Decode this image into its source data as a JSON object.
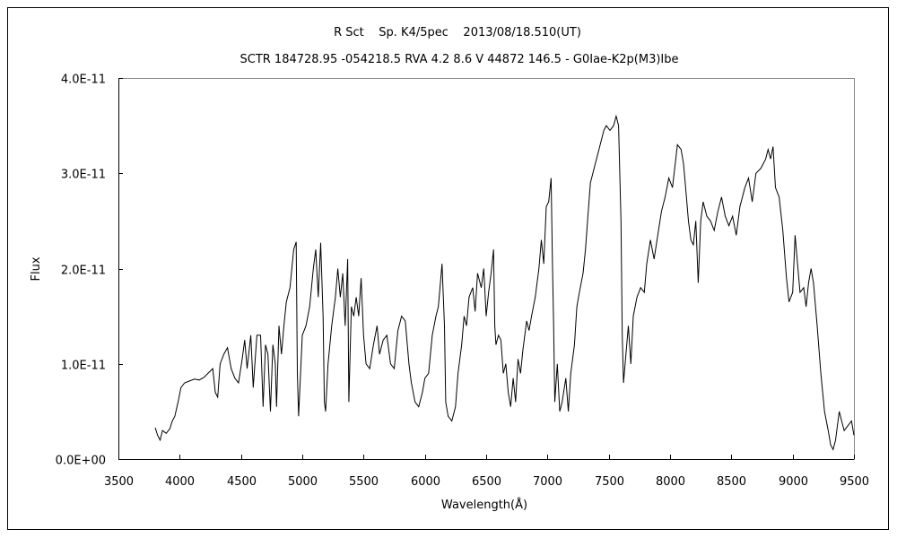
{
  "chart_data": {
    "type": "line",
    "title": "R Sct    Sp. K4/5pec    2013/08/18.510(UT)",
    "subtitle": "SCTR 184728.95 -054218.5 RVA 4.2 8.6 V 44872 146.5 - G0Iae-K2p(M3)Ibe",
    "xlabel": "Wavelength(Å)",
    "ylabel": "Flux",
    "xlim": [
      3500,
      9500
    ],
    "ylim": [
      0,
      4e-11
    ],
    "x_ticks": [
      3500,
      4000,
      4500,
      5000,
      5500,
      6000,
      6500,
      7000,
      7500,
      8000,
      8500,
      9000,
      9500
    ],
    "x_tick_labels": [
      "3500",
      "4000",
      "4500",
      "5000",
      "5500",
      "6000",
      "6500",
      "7000",
      "7500",
      "8000",
      "8500",
      "9000",
      "9500"
    ],
    "y_ticks": [
      0,
      1e-11,
      2e-11,
      3e-11,
      4e-11
    ],
    "y_tick_labels": [
      "0.0E+00",
      "1.0E-11",
      "2.0E-11",
      "3.0E-11",
      "4.0E-11"
    ],
    "grid": false,
    "line_color": "#000000",
    "series": [
      {
        "points": [
          [
            3800,
            3.3e-12
          ],
          [
            3820,
            2.5e-12
          ],
          [
            3840,
            2e-12
          ],
          [
            3860,
            3e-12
          ],
          [
            3890,
            2.7e-12
          ],
          [
            3920,
            3.2e-12
          ],
          [
            3940,
            4e-12
          ],
          [
            3960,
            4.5e-12
          ],
          [
            3990,
            6.2e-12
          ],
          [
            4010,
            7.5e-12
          ],
          [
            4040,
            8e-12
          ],
          [
            4080,
            8.2e-12
          ],
          [
            4120,
            8.4e-12
          ],
          [
            4160,
            8.3e-12
          ],
          [
            4200,
            8.6e-12
          ],
          [
            4230,
            9e-12
          ],
          [
            4270,
            9.5e-12
          ],
          [
            4290,
            7e-12
          ],
          [
            4310,
            6.5e-12
          ],
          [
            4330,
            1e-11
          ],
          [
            4360,
            1.1e-11
          ],
          [
            4390,
            1.17e-11
          ],
          [
            4420,
            9.5e-12
          ],
          [
            4450,
            8.5e-12
          ],
          [
            4480,
            8e-12
          ],
          [
            4510,
            1.05e-11
          ],
          [
            4530,
            1.25e-11
          ],
          [
            4550,
            9.5e-12
          ],
          [
            4580,
            1.3e-11
          ],
          [
            4600,
            7.5e-12
          ],
          [
            4630,
            1.3e-11
          ],
          [
            4660,
            1.3e-11
          ],
          [
            4680,
            5.5e-12
          ],
          [
            4700,
            1.2e-11
          ],
          [
            4720,
            1.1e-11
          ],
          [
            4740,
            5e-12
          ],
          [
            4760,
            1.2e-11
          ],
          [
            4780,
            1e-11
          ],
          [
            4790,
            5.5e-12
          ],
          [
            4810,
            1.4e-11
          ],
          [
            4830,
            1.1e-11
          ],
          [
            4850,
            1.4e-11
          ],
          [
            4870,
            1.65e-11
          ],
          [
            4900,
            1.8e-11
          ],
          [
            4930,
            2.2e-11
          ],
          [
            4950,
            2.28e-11
          ],
          [
            4960,
            9e-12
          ],
          [
            4970,
            4.5e-12
          ],
          [
            5000,
            1.3e-11
          ],
          [
            5030,
            1.4e-11
          ],
          [
            5060,
            1.6e-11
          ],
          [
            5090,
            2e-11
          ],
          [
            5110,
            2.2e-11
          ],
          [
            5130,
            1.7e-11
          ],
          [
            5150,
            2.27e-11
          ],
          [
            5170,
            1.5e-11
          ],
          [
            5180,
            6e-12
          ],
          [
            5190,
            5e-12
          ],
          [
            5210,
            1e-11
          ],
          [
            5240,
            1.4e-11
          ],
          [
            5270,
            1.7e-11
          ],
          [
            5290,
            2e-11
          ],
          [
            5310,
            1.7e-11
          ],
          [
            5330,
            1.95e-11
          ],
          [
            5350,
            1.4e-11
          ],
          [
            5370,
            2.1e-11
          ],
          [
            5380,
            6e-12
          ],
          [
            5400,
            1.6e-11
          ],
          [
            5420,
            1.5e-11
          ],
          [
            5440,
            1.7e-11
          ],
          [
            5460,
            1.5e-11
          ],
          [
            5480,
            1.9e-11
          ],
          [
            5500,
            1.3e-11
          ],
          [
            5520,
            1e-11
          ],
          [
            5550,
            9.5e-12
          ],
          [
            5580,
            1.2e-11
          ],
          [
            5610,
            1.4e-11
          ],
          [
            5630,
            1.1e-11
          ],
          [
            5660,
            1.25e-11
          ],
          [
            5690,
            1.3e-11
          ],
          [
            5720,
            1e-11
          ],
          [
            5750,
            9.5e-12
          ],
          [
            5780,
            1.35e-11
          ],
          [
            5810,
            1.5e-11
          ],
          [
            5840,
            1.45e-11
          ],
          [
            5870,
            1e-11
          ],
          [
            5890,
            8e-12
          ],
          [
            5920,
            6e-12
          ],
          [
            5950,
            5.5e-12
          ],
          [
            5980,
            7e-12
          ],
          [
            6000,
            8.5e-12
          ],
          [
            6030,
            9e-12
          ],
          [
            6060,
            1.3e-11
          ],
          [
            6090,
            1.5e-11
          ],
          [
            6110,
            1.6e-11
          ],
          [
            6140,
            2.05e-11
          ],
          [
            6160,
            1.4e-11
          ],
          [
            6170,
            6e-12
          ],
          [
            6190,
            4.5e-12
          ],
          [
            6220,
            4e-12
          ],
          [
            6250,
            5.5e-12
          ],
          [
            6270,
            9e-12
          ],
          [
            6300,
            1.2e-11
          ],
          [
            6320,
            1.5e-11
          ],
          [
            6340,
            1.4e-11
          ],
          [
            6360,
            1.7e-11
          ],
          [
            6390,
            1.8e-11
          ],
          [
            6410,
            1.55e-11
          ],
          [
            6430,
            1.95e-11
          ],
          [
            6460,
            1.8e-11
          ],
          [
            6480,
            2e-11
          ],
          [
            6500,
            1.5e-11
          ],
          [
            6520,
            1.75e-11
          ],
          [
            6540,
            1.95e-11
          ],
          [
            6560,
            2.2e-11
          ],
          [
            6570,
            1.4e-11
          ],
          [
            6580,
            1.2e-11
          ],
          [
            6600,
            1.3e-11
          ],
          [
            6620,
            1.25e-11
          ],
          [
            6640,
            9e-12
          ],
          [
            6660,
            1e-11
          ],
          [
            6680,
            7e-12
          ],
          [
            6700,
            5.5e-12
          ],
          [
            6720,
            8.5e-12
          ],
          [
            6740,
            6e-12
          ],
          [
            6760,
            1.05e-11
          ],
          [
            6780,
            9e-12
          ],
          [
            6800,
            1.15e-11
          ],
          [
            6830,
            1.45e-11
          ],
          [
            6850,
            1.35e-11
          ],
          [
            6870,
            1.5e-11
          ],
          [
            6900,
            1.7e-11
          ],
          [
            6930,
            2e-11
          ],
          [
            6950,
            2.3e-11
          ],
          [
            6970,
            2.05e-11
          ],
          [
            6990,
            2.65e-11
          ],
          [
            7010,
            2.7e-11
          ],
          [
            7030,
            2.95e-11
          ],
          [
            7040,
            2.1e-11
          ],
          [
            7050,
            1.4e-11
          ],
          [
            7060,
            6e-12
          ],
          [
            7080,
            1e-11
          ],
          [
            7100,
            5e-12
          ],
          [
            7120,
            6e-12
          ],
          [
            7150,
            8.5e-12
          ],
          [
            7170,
            5e-12
          ],
          [
            7190,
            9e-12
          ],
          [
            7220,
            1.2e-11
          ],
          [
            7240,
            1.6e-11
          ],
          [
            7260,
            1.75e-11
          ],
          [
            7290,
            1.95e-11
          ],
          [
            7310,
            2.2e-11
          ],
          [
            7330,
            2.55e-11
          ],
          [
            7350,
            2.9e-11
          ],
          [
            7380,
            3.05e-11
          ],
          [
            7410,
            3.2e-11
          ],
          [
            7430,
            3.3e-11
          ],
          [
            7460,
            3.45e-11
          ],
          [
            7480,
            3.5e-11
          ],
          [
            7510,
            3.45e-11
          ],
          [
            7540,
            3.5e-11
          ],
          [
            7560,
            3.6e-11
          ],
          [
            7580,
            3.5e-11
          ],
          [
            7600,
            2.5e-11
          ],
          [
            7610,
            1.3e-11
          ],
          [
            7620,
            8e-12
          ],
          [
            7640,
            1.1e-11
          ],
          [
            7660,
            1.4e-11
          ],
          [
            7680,
            1e-11
          ],
          [
            7700,
            1.5e-11
          ],
          [
            7730,
            1.7e-11
          ],
          [
            7760,
            1.8e-11
          ],
          [
            7790,
            1.75e-11
          ],
          [
            7810,
            2.05e-11
          ],
          [
            7840,
            2.3e-11
          ],
          [
            7870,
            2.1e-11
          ],
          [
            7900,
            2.35e-11
          ],
          [
            7930,
            2.6e-11
          ],
          [
            7960,
            2.75e-11
          ],
          [
            7990,
            2.95e-11
          ],
          [
            8020,
            2.85e-11
          ],
          [
            8060,
            3.3e-11
          ],
          [
            8090,
            3.25e-11
          ],
          [
            8110,
            3.1e-11
          ],
          [
            8130,
            2.8e-11
          ],
          [
            8150,
            2.5e-11
          ],
          [
            8170,
            2.3e-11
          ],
          [
            8190,
            2.25e-11
          ],
          [
            8210,
            2.5e-11
          ],
          [
            8230,
            1.85e-11
          ],
          [
            8250,
            2.5e-11
          ],
          [
            8270,
            2.7e-11
          ],
          [
            8300,
            2.55e-11
          ],
          [
            8330,
            2.5e-11
          ],
          [
            8360,
            2.4e-11
          ],
          [
            8390,
            2.6e-11
          ],
          [
            8420,
            2.75e-11
          ],
          [
            8450,
            2.55e-11
          ],
          [
            8480,
            2.45e-11
          ],
          [
            8510,
            2.55e-11
          ],
          [
            8540,
            2.35e-11
          ],
          [
            8570,
            2.65e-11
          ],
          [
            8610,
            2.85e-11
          ],
          [
            8640,
            2.95e-11
          ],
          [
            8670,
            2.7e-11
          ],
          [
            8700,
            3e-11
          ],
          [
            8740,
            3.05e-11
          ],
          [
            8780,
            3.15e-11
          ],
          [
            8800,
            3.25e-11
          ],
          [
            8820,
            3.15e-11
          ],
          [
            8840,
            3.28e-11
          ],
          [
            8860,
            2.85e-11
          ],
          [
            8890,
            2.75e-11
          ],
          [
            8920,
            2.4e-11
          ],
          [
            8950,
            1.9e-11
          ],
          [
            8970,
            1.65e-11
          ],
          [
            9000,
            1.75e-11
          ],
          [
            9020,
            2.35e-11
          ],
          [
            9040,
            2.05e-11
          ],
          [
            9060,
            1.75e-11
          ],
          [
            9090,
            1.8e-11
          ],
          [
            9110,
            1.6e-11
          ],
          [
            9130,
            1.85e-11
          ],
          [
            9150,
            2e-11
          ],
          [
            9170,
            1.85e-11
          ],
          [
            9200,
            1.4e-11
          ],
          [
            9230,
            9e-12
          ],
          [
            9260,
            5e-12
          ],
          [
            9290,
            3e-12
          ],
          [
            9310,
            1.5e-12
          ],
          [
            9330,
            1e-12
          ],
          [
            9350,
            2e-12
          ],
          [
            9380,
            5e-12
          ],
          [
            9400,
            4e-12
          ],
          [
            9420,
            3e-12
          ],
          [
            9450,
            3.5e-12
          ],
          [
            9480,
            4e-12
          ],
          [
            9500,
            2.5e-12
          ]
        ]
      }
    ]
  }
}
